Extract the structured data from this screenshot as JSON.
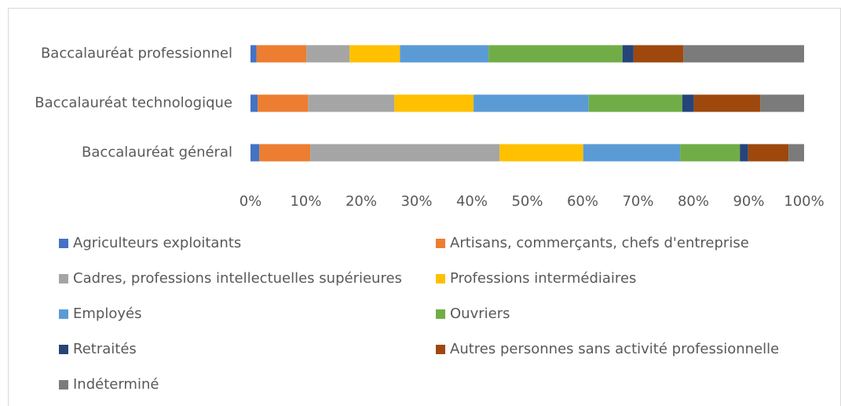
{
  "chart_data": {
    "type": "bar",
    "orientation": "horizontal",
    "stacked": true,
    "categories": [
      "Baccalauréat professionnel",
      "Baccalauréat technologique",
      "Baccalauréat général"
    ],
    "series": [
      {
        "name": "Agriculteurs exploitants",
        "color": "#4472c4",
        "values": [
          1.1,
          1.3,
          1.6
        ]
      },
      {
        "name": "Artisans, commerçants, chefs d'entreprise",
        "color": "#ed7d31",
        "values": [
          9.0,
          9.1,
          9.2
        ]
      },
      {
        "name": "Cadres, professions intellectuelles supérieures",
        "color": "#a5a5a5",
        "values": [
          7.8,
          15.6,
          34.2
        ]
      },
      {
        "name": "Professions intermédiaires",
        "color": "#ffc000",
        "values": [
          9.1,
          14.3,
          15.1
        ]
      },
      {
        "name": "Employés",
        "color": "#5b9bd5",
        "values": [
          16.0,
          20.8,
          17.5
        ]
      },
      {
        "name": "Ouvriers",
        "color": "#70ad47",
        "values": [
          24.2,
          16.9,
          10.8
        ]
      },
      {
        "name": "Retraités",
        "color": "#264478",
        "values": [
          2.0,
          2.1,
          1.5
        ]
      },
      {
        "name": "Autres personnes sans activité professionnelle",
        "color": "#9e480e",
        "values": [
          9.0,
          12.0,
          7.3
        ]
      },
      {
        "name": "Indéterminé",
        "color": "#7b7b7b",
        "values": [
          21.8,
          7.9,
          2.8
        ]
      }
    ],
    "xlim": [
      0,
      100
    ],
    "xticks": [
      {
        "value": 0,
        "label": "0%"
      },
      {
        "value": 10,
        "label": "10%"
      },
      {
        "value": 20,
        "label": "20%"
      },
      {
        "value": 30,
        "label": "30%"
      },
      {
        "value": 40,
        "label": "40%"
      },
      {
        "value": 50,
        "label": "50%"
      },
      {
        "value": 60,
        "label": "60%"
      },
      {
        "value": 70,
        "label": "70%"
      },
      {
        "value": 80,
        "label": "80%"
      },
      {
        "value": 90,
        "label": "90%"
      },
      {
        "value": 100,
        "label": "100%"
      }
    ],
    "grid": false,
    "legend": "bottom"
  }
}
